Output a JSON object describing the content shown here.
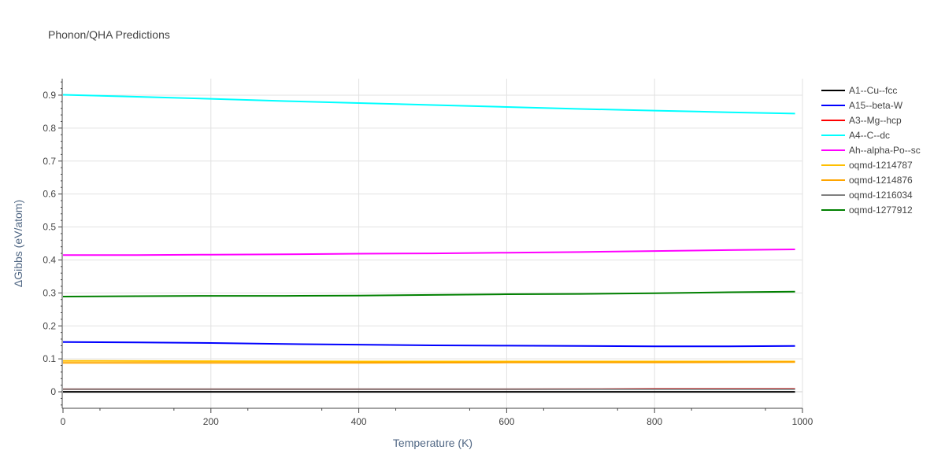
{
  "chart_data": {
    "type": "line",
    "title": "Phonon/QHA Predictions",
    "xlabel": "Temperature (K)",
    "ylabel": "ΔGibbs (eV/atom)",
    "xlim": [
      0,
      1000
    ],
    "ylim": [
      -0.05,
      0.95
    ],
    "xticks": [
      0,
      200,
      400,
      600,
      800,
      1000
    ],
    "xtick_labels": [
      "0",
      "200",
      "400",
      "600",
      "800",
      "1000"
    ],
    "yticks": [
      0,
      0.1,
      0.2,
      0.3,
      0.4,
      0.5,
      0.6,
      0.7,
      0.8,
      0.9
    ],
    "ytick_labels": [
      "0",
      "0.1",
      "0.2",
      "0.3",
      "0.4",
      "0.5",
      "0.6",
      "0.7",
      "0.8",
      "0.9"
    ],
    "grid": true,
    "legend_position": "right",
    "series": [
      {
        "name": "A1--Cu--fcc",
        "color": "#000000",
        "x": [
          0,
          200,
          400,
          600,
          800,
          990
        ],
        "y": [
          0.0,
          0.0,
          0.0,
          0.0,
          0.0,
          0.0
        ]
      },
      {
        "name": "A15--beta-W",
        "color": "#0000ff",
        "x": [
          0,
          100,
          200,
          300,
          400,
          500,
          600,
          700,
          800,
          900,
          990
        ],
        "y": [
          0.151,
          0.15,
          0.148,
          0.145,
          0.143,
          0.141,
          0.14,
          0.139,
          0.138,
          0.138,
          0.139
        ]
      },
      {
        "name": "A3--Mg--hcp",
        "color": "#ff0000",
        "x": [
          0,
          200,
          400,
          600,
          800,
          990
        ],
        "y": [
          0.008,
          0.008,
          0.008,
          0.008,
          0.009,
          0.009
        ]
      },
      {
        "name": "A4--C--dc",
        "color": "#00ffff",
        "x": [
          0,
          100,
          200,
          300,
          400,
          500,
          600,
          700,
          800,
          900,
          990
        ],
        "y": [
          0.901,
          0.895,
          0.889,
          0.882,
          0.876,
          0.87,
          0.864,
          0.858,
          0.853,
          0.848,
          0.844
        ]
      },
      {
        "name": "Ah--alpha-Po--sc",
        "color": "#ff00ff",
        "x": [
          0,
          100,
          200,
          300,
          400,
          500,
          600,
          700,
          800,
          900,
          990
        ],
        "y": [
          0.415,
          0.415,
          0.416,
          0.417,
          0.419,
          0.42,
          0.422,
          0.424,
          0.427,
          0.43,
          0.432
        ]
      },
      {
        "name": "oqmd-1214787",
        "color": "#ffbf00",
        "x": [
          0,
          200,
          400,
          600,
          800,
          990
        ],
        "y": [
          0.094,
          0.093,
          0.092,
          0.092,
          0.092,
          0.092
        ]
      },
      {
        "name": "oqmd-1214876",
        "color": "#ffa500",
        "x": [
          0,
          200,
          400,
          600,
          800,
          990
        ],
        "y": [
          0.088,
          0.088,
          0.088,
          0.089,
          0.089,
          0.09
        ]
      },
      {
        "name": "oqmd-1216034",
        "color": "#808080",
        "x": [
          0,
          200,
          400,
          600,
          800,
          990
        ],
        "y": [
          0.008,
          0.008,
          0.008,
          0.008,
          0.008,
          0.008
        ]
      },
      {
        "name": "oqmd-1277912",
        "color": "#008000",
        "x": [
          0,
          100,
          200,
          300,
          400,
          500,
          600,
          700,
          800,
          900,
          990
        ],
        "y": [
          0.289,
          0.29,
          0.291,
          0.291,
          0.292,
          0.294,
          0.296,
          0.297,
          0.299,
          0.302,
          0.304
        ]
      }
    ]
  }
}
